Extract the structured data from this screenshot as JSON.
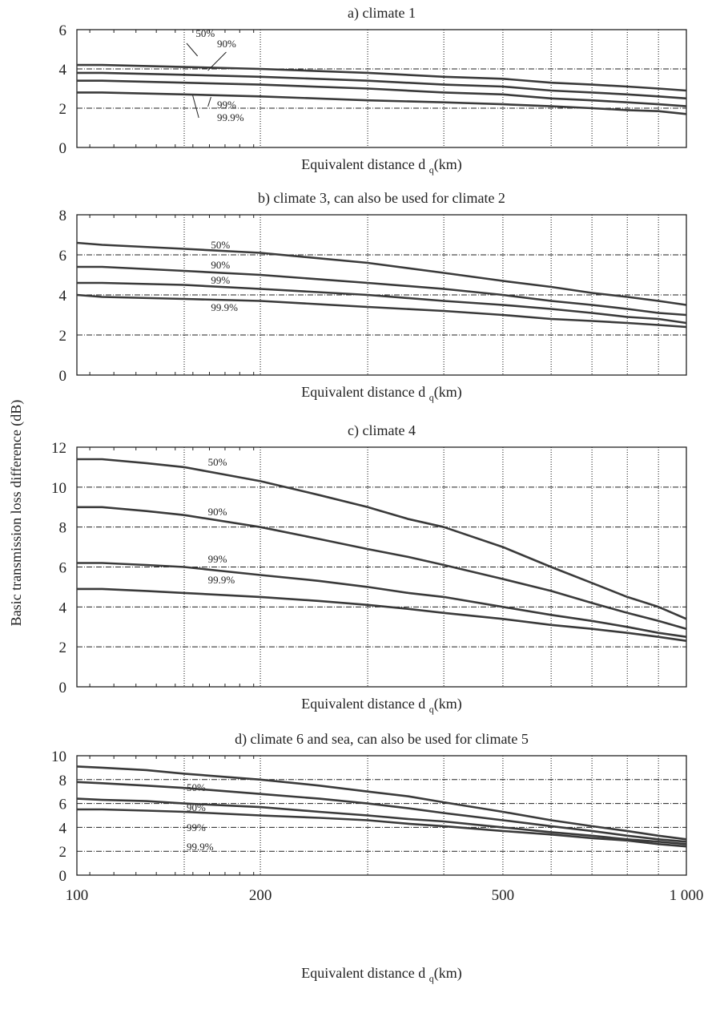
{
  "figure": {
    "ylabel": "Basic transmission loss difference (dB)",
    "sub": "q"
  },
  "chart_data": [
    {
      "type": "line",
      "title": "a) climate 1",
      "xlabel": "Equivalent distance d",
      "xscale": "log",
      "xlim": [
        100,
        1000
      ],
      "ylim": [
        0,
        6
      ],
      "yticks": [
        0,
        2,
        4,
        6
      ],
      "grid": true,
      "series": [
        {
          "name": "50%",
          "x": [
            100,
            110,
            150,
            200,
            300,
            400,
            500,
            600,
            700,
            800,
            900,
            1000
          ],
          "y": [
            4.2,
            4.2,
            4.1,
            4.0,
            3.8,
            3.6,
            3.5,
            3.3,
            3.2,
            3.1,
            3.0,
            2.9
          ]
        },
        {
          "name": "90%",
          "x": [
            100,
            110,
            150,
            200,
            300,
            400,
            500,
            600,
            700,
            800,
            900,
            1000
          ],
          "y": [
            3.8,
            3.8,
            3.7,
            3.6,
            3.4,
            3.2,
            3.1,
            2.9,
            2.8,
            2.7,
            2.6,
            2.5
          ]
        },
        {
          "name": "99%",
          "x": [
            100,
            110,
            150,
            200,
            300,
            400,
            500,
            600,
            700,
            800,
            900,
            1000
          ],
          "y": [
            3.4,
            3.4,
            3.3,
            3.2,
            3.0,
            2.8,
            2.7,
            2.5,
            2.4,
            2.3,
            2.2,
            2.1
          ]
        },
        {
          "name": "99.9%",
          "x": [
            100,
            110,
            150,
            200,
            300,
            400,
            500,
            600,
            700,
            800,
            900,
            1000
          ],
          "y": [
            2.8,
            2.8,
            2.7,
            2.6,
            2.4,
            2.3,
            2.2,
            2.1,
            2.0,
            1.9,
            1.85,
            1.7
          ]
        }
      ]
    },
    {
      "type": "line",
      "title": "b) climate 3, can also be used for climate 2",
      "xlabel": "Equivalent distance d",
      "xscale": "log",
      "xlim": [
        100,
        1000
      ],
      "ylim": [
        0,
        8
      ],
      "yticks": [
        0,
        2,
        4,
        6,
        8
      ],
      "grid": true,
      "series": [
        {
          "name": "50%",
          "x": [
            100,
            110,
            150,
            200,
            300,
            400,
            500,
            600,
            700,
            800,
            900,
            1000
          ],
          "y": [
            6.6,
            6.5,
            6.3,
            6.1,
            5.6,
            5.1,
            4.7,
            4.4,
            4.1,
            3.9,
            3.7,
            3.5
          ]
        },
        {
          "name": "90%",
          "x": [
            100,
            110,
            150,
            200,
            300,
            400,
            500,
            600,
            700,
            800,
            900,
            1000
          ],
          "y": [
            5.4,
            5.4,
            5.2,
            5.0,
            4.6,
            4.3,
            4.0,
            3.7,
            3.5,
            3.3,
            3.1,
            3.0
          ]
        },
        {
          "name": "99%",
          "x": [
            100,
            110,
            150,
            200,
            300,
            400,
            500,
            600,
            700,
            800,
            900,
            1000
          ],
          "y": [
            4.6,
            4.6,
            4.5,
            4.3,
            4.0,
            3.7,
            3.5,
            3.3,
            3.1,
            2.9,
            2.8,
            2.6
          ]
        },
        {
          "name": "99.9%",
          "x": [
            100,
            110,
            150,
            200,
            300,
            400,
            500,
            600,
            700,
            800,
            900,
            1000
          ],
          "y": [
            4.0,
            3.9,
            3.8,
            3.7,
            3.4,
            3.2,
            3.0,
            2.8,
            2.7,
            2.6,
            2.5,
            2.4
          ]
        }
      ]
    },
    {
      "type": "line",
      "title": "c) climate 4",
      "xlabel": "Equivalent distance d",
      "xscale": "log",
      "xlim": [
        100,
        1000
      ],
      "ylim": [
        0,
        12
      ],
      "yticks": [
        0,
        2,
        4,
        6,
        8,
        10,
        12
      ],
      "grid": true,
      "series": [
        {
          "name": "50%",
          "x": [
            100,
            110,
            130,
            150,
            200,
            250,
            300,
            350,
            400,
            500,
            600,
            700,
            800,
            900,
            1000
          ],
          "y": [
            11.4,
            11.4,
            11.2,
            11.0,
            10.3,
            9.6,
            9.0,
            8.4,
            8.0,
            7.0,
            6.0,
            5.2,
            4.5,
            4.0,
            3.4
          ]
        },
        {
          "name": "90%",
          "x": [
            100,
            110,
            130,
            150,
            200,
            250,
            300,
            350,
            400,
            500,
            600,
            700,
            800,
            900,
            1000
          ],
          "y": [
            9.0,
            9.0,
            8.8,
            8.6,
            8.0,
            7.4,
            6.9,
            6.5,
            6.1,
            5.4,
            4.8,
            4.2,
            3.7,
            3.3,
            2.9
          ]
        },
        {
          "name": "99%",
          "x": [
            100,
            110,
            130,
            150,
            200,
            250,
            300,
            350,
            400,
            500,
            600,
            700,
            800,
            900,
            1000
          ],
          "y": [
            6.2,
            6.2,
            6.1,
            6.0,
            5.6,
            5.3,
            5.0,
            4.7,
            4.5,
            4.0,
            3.6,
            3.3,
            3.0,
            2.7,
            2.5
          ]
        },
        {
          "name": "99.9%",
          "x": [
            100,
            110,
            130,
            150,
            200,
            250,
            300,
            350,
            400,
            500,
            600,
            700,
            800,
            900,
            1000
          ],
          "y": [
            4.9,
            4.9,
            4.8,
            4.7,
            4.5,
            4.3,
            4.1,
            3.9,
            3.7,
            3.4,
            3.1,
            2.9,
            2.7,
            2.5,
            2.3
          ]
        }
      ]
    },
    {
      "type": "line",
      "title": "d) climate 6 and sea, can also be used for climate 5",
      "xlabel": "Equivalent distance d",
      "xscale": "log",
      "xlim": [
        100,
        1000
      ],
      "ylim": [
        0,
        10
      ],
      "yticks": [
        0,
        2,
        4,
        6,
        8,
        10
      ],
      "xticks": [
        100,
        200,
        500,
        1000
      ],
      "xticklabels": [
        "100",
        "200",
        "500",
        "1 000"
      ],
      "grid": true,
      "series": [
        {
          "name": "50%",
          "x": [
            100,
            110,
            130,
            150,
            200,
            250,
            300,
            350,
            400,
            500,
            600,
            700,
            800,
            900,
            1000
          ],
          "y": [
            9.1,
            9.0,
            8.8,
            8.5,
            8.0,
            7.5,
            7.0,
            6.6,
            6.1,
            5.3,
            4.6,
            4.1,
            3.7,
            3.3,
            3.0
          ]
        },
        {
          "name": "90%",
          "x": [
            100,
            110,
            130,
            150,
            200,
            250,
            300,
            350,
            400,
            500,
            600,
            700,
            800,
            900,
            1000
          ],
          "y": [
            7.8,
            7.7,
            7.5,
            7.3,
            6.8,
            6.4,
            6.0,
            5.6,
            5.2,
            4.6,
            4.1,
            3.7,
            3.3,
            3.0,
            2.8
          ]
        },
        {
          "name": "99%",
          "x": [
            100,
            110,
            130,
            150,
            200,
            250,
            300,
            350,
            400,
            500,
            600,
            700,
            800,
            900,
            1000
          ],
          "y": [
            6.4,
            6.3,
            6.2,
            6.0,
            5.7,
            5.3,
            5.0,
            4.7,
            4.5,
            4.0,
            3.6,
            3.3,
            3.0,
            2.8,
            2.6
          ]
        },
        {
          "name": "99.9%",
          "x": [
            100,
            110,
            130,
            150,
            200,
            250,
            300,
            350,
            400,
            500,
            600,
            700,
            800,
            900,
            1000
          ],
          "y": [
            5.5,
            5.5,
            5.4,
            5.3,
            5.0,
            4.8,
            4.6,
            4.3,
            4.1,
            3.7,
            3.4,
            3.1,
            2.9,
            2.6,
            2.4
          ]
        }
      ]
    }
  ]
}
